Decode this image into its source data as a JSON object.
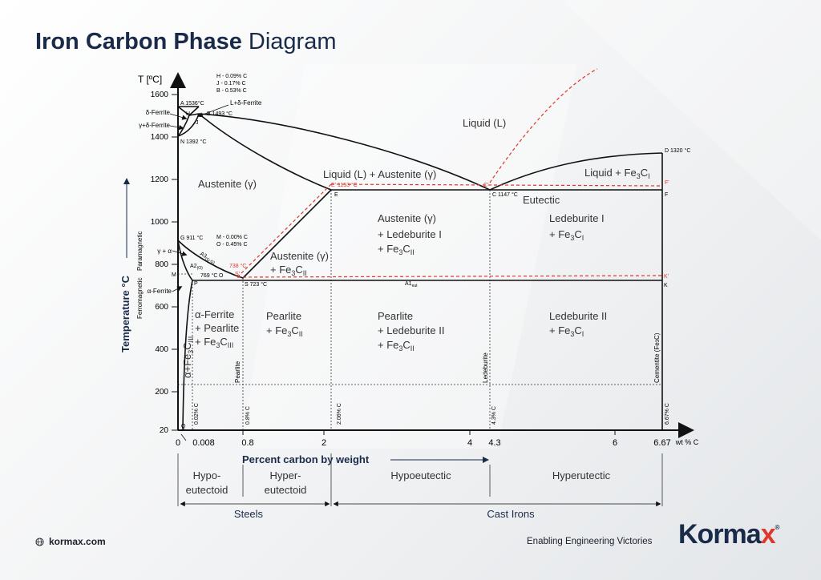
{
  "title": {
    "bold": "Iron Carbon Phase",
    "light": "Diagram"
  },
  "axes": {
    "y_label": "T [ºC]",
    "y_ticks": [
      "1600",
      "1400",
      "1200",
      "1000",
      "800",
      "600",
      "400",
      "200",
      "20"
    ],
    "x_ticks": [
      "0",
      "0.008",
      "0.8",
      "2",
      "4",
      "4.3",
      "6",
      "6.67"
    ],
    "x_unit": "wt % C",
    "x_title": "Percent carbon by weight",
    "y_title": "Temperature °C",
    "paramagnetic": "Paramagnetic",
    "ferromagnetic": "Ferromagnetic"
  },
  "composition_notes": {
    "h": "H - 0.09%  C",
    "j": "J  - 0.17%  C",
    "b": "B  - 0.53%  C",
    "m": "M - 0.00%  C",
    "o": "O - 0.45%  C"
  },
  "points": {
    "a": "A 1536°C",
    "b": "B 1493 °C",
    "n": "N 1392 °C",
    "h": "H",
    "j": "J",
    "d": "D 1320 °C",
    "f": "F",
    "f_prime": "F'",
    "e_prime": "E' 1153 °C",
    "e": "E",
    "c_prime": "C'",
    "c": "C 1147 °C",
    "g": "G 911 °C",
    "s_prime": "S'",
    "s": "S 723 °C",
    "k": "K",
    "k_prime": "K'",
    "m": "M",
    "p": "P",
    "q": "Q",
    "t738": "738 °C",
    "t769": "769 °C",
    "o": "O",
    "a1": "A1",
    "a1_sub": "eut",
    "a2": "A2",
    "a2_sub": "(O)",
    "a3": "A3",
    "a3_sub": "(G-O)"
  },
  "phases": {
    "delta_ferrite": "δ-Ferrite",
    "gamma_delta_ferrite": "γ+δ-Ferrite",
    "l_delta_ferrite": "L+δ-Ferrite",
    "liquid": "Liquid (L)",
    "austenite": "Austenite (γ)",
    "liquid_austenite": "Liquid (L) + Austenite (γ)",
    "liquid_fe3c": "Liquid + Fe",
    "eutectic": "Eutectic",
    "gamma_alpha": "γ + α",
    "alpha_ferrite_side": "α-Ferrite",
    "austenite_fe3c_1": "Austenite (γ)",
    "austenite_fe3c_2": "+ Fe",
    "aust_led_1": "Austenite (γ)",
    "aust_led_2": "+ Ledeburite I",
    "aust_led_3": "+ Fe",
    "led1_1": "Ledeburite I",
    "led1_2": "+ Fe",
    "af_1": "α-Ferrite",
    "af_2": "+ Pearlite",
    "af_3": "+ Fe",
    "pearlite_fe3c_1": "Pearlite",
    "pearlite_fe3c_2": "+ Fe",
    "pearlite_led_1": "Pearlite",
    "pearlite_led_2": "+ Ledeburite II",
    "pearlite_led_3": "+ Fe",
    "led2_1": "Ledeburite II",
    "led2_2": "+ Fe",
    "alpha_fe3c": "α+Fe",
    "sub_3": "3",
    "sub_c": "C",
    "sub_ii": "II",
    "sub_i": "I",
    "sub_iii": "III"
  },
  "vertical_labels": {
    "c002": "0.02% C",
    "c08": "0.8% C",
    "c206": "2.06% C",
    "c43": "4.3% C",
    "c667": "6.67% C",
    "pearlite": "Pearlite",
    "ledeburite": "Ledeburite",
    "cementite": "Cementite (Fe",
    "cementite_sub": "3",
    "cementite_end": "C)"
  },
  "categories": {
    "hypoeutectoid": [
      "Hypo-",
      "eutectoid"
    ],
    "hypereutectoid": [
      "Hyper-",
      "eutectoid"
    ],
    "hypoeutectic": "Hypoeutectic",
    "hyperutectic": "Hyperutectic",
    "steels": "Steels",
    "cast_irons": "Cast Irons"
  },
  "footer": {
    "website": "kormax.com",
    "tagline": "Enabling Engineering Victories",
    "logo_main": "Korma",
    "logo_x": "x",
    "logo_reg": "®"
  },
  "colors": {
    "navy": "#1a2b4a",
    "red": "#e0362c",
    "dashed_red": "#e0362c",
    "line": "#111111"
  }
}
